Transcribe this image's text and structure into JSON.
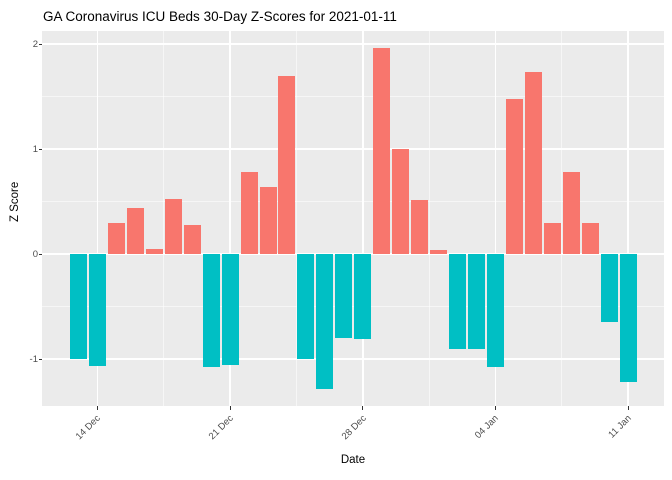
{
  "title": "GA Coronavirus ICU Beds 30-Day Z-Scores for 2021-01-11",
  "chart_data": {
    "type": "bar",
    "title": "GA Coronavirus ICU Beds 30-Day Z-Scores for 2021-01-11",
    "xlabel": "Date",
    "ylabel": "Z Score",
    "categories": [
      "2020-12-13",
      "2020-12-14",
      "2020-12-15",
      "2020-12-16",
      "2020-12-17",
      "2020-12-18",
      "2020-12-19",
      "2020-12-20",
      "2020-12-21",
      "2020-12-22",
      "2020-12-23",
      "2020-12-24",
      "2020-12-25",
      "2020-12-26",
      "2020-12-27",
      "2020-12-28",
      "2020-12-29",
      "2020-12-30",
      "2020-12-31",
      "2021-01-01",
      "2021-01-02",
      "2021-01-03",
      "2021-01-04",
      "2021-01-05",
      "2021-01-06",
      "2021-01-07",
      "2021-01-08",
      "2021-01-09",
      "2021-01-10",
      "2021-01-11"
    ],
    "values": [
      -1.0,
      -1.07,
      0.3,
      0.44,
      0.05,
      0.52,
      0.28,
      -1.08,
      -1.06,
      0.78,
      0.64,
      1.7,
      -1.0,
      -1.29,
      -0.8,
      -0.81,
      1.96,
      1.0,
      0.51,
      0.04,
      -0.9,
      -0.9,
      -1.08,
      1.48,
      1.73,
      0.3,
      0.78,
      0.3,
      -0.65,
      -1.22
    ],
    "x_tick_labels": [
      "14 Dec",
      "21 Dec",
      "28 Dec",
      "04 Jan",
      "11 Jan"
    ],
    "x_tick_indices": [
      1,
      8,
      15,
      22,
      29
    ],
    "x_minor_indices": [
      4.5,
      11.5,
      18.5,
      25.5
    ],
    "y_ticks": [
      -1,
      0,
      1,
      2
    ],
    "y_minor_ticks": [
      -0.5,
      0.5,
      1.5
    ],
    "ylim": [
      -1.45,
      2.12
    ],
    "grid": "on",
    "legend": "none",
    "colors": {
      "positive_bar": "#F8766D",
      "negative_bar": "#00BFC4",
      "panel_background": "#EBEBEB",
      "gridline": "#FFFFFF",
      "axis_text": "#4D4D4D",
      "title_text": "#000000"
    }
  }
}
